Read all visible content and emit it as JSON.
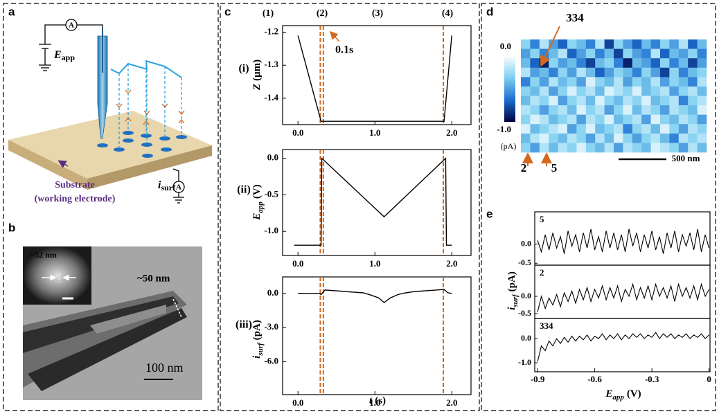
{
  "panels": {
    "a": {
      "label": "a",
      "ammeter_top": "A",
      "e_symbol": "E",
      "e_sub": "app",
      "i_symbol": "i",
      "i_sub": "surf",
      "ammeter_bottom": "A",
      "substrate": "Substrate",
      "electrode": "(working electrode)"
    },
    "b": {
      "label": "b",
      "inset_size": "~52 nm",
      "tube_size": "~50 nm",
      "scale_bar": "100 nm"
    },
    "c": {
      "label": "c"
    },
    "d": {
      "label": "d"
    },
    "e": {
      "label": "e"
    }
  },
  "chart_data": [
    {
      "type": "line",
      "row_label": "(i)",
      "phases": [
        "(1)",
        "(2)",
        "(3)",
        "(4)"
      ],
      "annotation": "0.1s",
      "ylabel": {
        "symbol": "Z",
        "unit": "(μm)"
      },
      "x": [
        0,
        0.3,
        1.9,
        2.0
      ],
      "values": [
        -1.21,
        -1.47,
        -1.47,
        -1.21
      ],
      "color": "#000000",
      "xlim": [
        -0.2,
        2.25
      ],
      "ylim": [
        -1.48,
        -1.18
      ],
      "xticks": [
        {
          "value": 0,
          "label": "0.0"
        },
        {
          "value": 1,
          "label": "1.0"
        },
        {
          "value": 2,
          "label": "2.0"
        }
      ],
      "yticks": [
        -1.2,
        -1.3,
        -1.4
      ],
      "markers": [
        0.29,
        0.33,
        1.89
      ],
      "marker_color": "#d2691e"
    },
    {
      "type": "line",
      "row_label": "(ii)",
      "ylabel": {
        "symbol": "E",
        "subscript": "app",
        "unit": "(V)"
      },
      "x": [
        -0.05,
        0.3,
        0.31,
        1.12,
        1.92,
        1.93,
        2.0
      ],
      "values": [
        -1.19,
        -1.19,
        0,
        -0.8,
        0,
        -1.19,
        -1.19
      ],
      "color": "#000000",
      "xlim": [
        -0.2,
        2.25
      ],
      "ylim": [
        -1.33,
        0.12
      ],
      "xticks": [
        {
          "value": 0,
          "label": "0.0"
        },
        {
          "value": 1,
          "label": "1.0"
        },
        {
          "value": 2,
          "label": "2.0"
        }
      ],
      "yticks": [
        {
          "value": 0,
          "label": "0.0"
        },
        -0.5,
        {
          "value": -1,
          "label": "-1.0"
        }
      ],
      "markers": [
        0.29,
        0.33,
        1.89
      ],
      "marker_color": "#d2691e"
    },
    {
      "type": "line",
      "row_label": "(iii)",
      "ylabel": {
        "symbol": "i",
        "subscript": "surf",
        "unit": "(pA)"
      },
      "xlabel": {
        "symbol": "t",
        "unit": "(s)"
      },
      "x": [
        0,
        0.1,
        0.2,
        0.28,
        0.3,
        0.35,
        0.45,
        0.55,
        0.65,
        0.75,
        0.85,
        0.95,
        1.05,
        1.12,
        1.2,
        1.3,
        1.4,
        1.5,
        1.6,
        1.7,
        1.8,
        1.9,
        1.95,
        2.0
      ],
      "values": [
        0,
        0,
        0,
        0,
        -0.1,
        0.3,
        0.25,
        0.2,
        0.15,
        0.1,
        0.05,
        -0.15,
        -0.4,
        -0.8,
        -0.4,
        -0.1,
        0.05,
        0.15,
        0.2,
        0.25,
        0.3,
        0.35,
        0.05,
        0
      ],
      "color": "#000000",
      "xlim": [
        -0.2,
        2.25
      ],
      "ylim": [
        -8.9,
        1.45
      ],
      "xticks": [
        {
          "value": 0,
          "label": "0.0"
        },
        {
          "value": 1,
          "label": "1.0"
        },
        {
          "value": 2,
          "label": "2.0"
        }
      ],
      "yticks": [
        {
          "value": 0,
          "label": "0.0"
        },
        {
          "value": -3,
          "label": "-3.0"
        },
        {
          "value": -6,
          "label": "-6.0"
        }
      ],
      "markers": [
        0.29,
        0.33,
        1.89
      ],
      "marker_color": "#d2691e"
    },
    {
      "type": "heatmap",
      "zlim": [
        -1,
        0
      ],
      "colormap": [
        "#000040",
        "#1e6ed2",
        "#7fd0f0",
        "#ffffff"
      ],
      "colorbar_ticks": [
        {
          "value": 0,
          "label": "0.0"
        },
        {
          "value": -1,
          "label": "-1.0"
        }
      ],
      "colorbar_unit": "(pA)",
      "annotations": [
        "334",
        "2",
        "5"
      ],
      "annotation_color": "#d2691e",
      "scale_bar": "500 nm",
      "values": [
        [
          -0.3,
          -0.6,
          -0.2,
          -0.5,
          -0.7,
          -0.3,
          -0.4,
          -0.6,
          -0.2,
          -0.8,
          -0.3,
          -0.5,
          -0.7,
          -0.4,
          -0.6,
          -0.3,
          -0.5,
          -0.2,
          -0.7,
          -0.4
        ],
        [
          -0.5,
          -0.3,
          -0.6,
          -0.4,
          -0.2,
          -0.7,
          -0.5,
          -0.3,
          -0.6,
          -0.4,
          -0.8,
          -0.3,
          -0.5,
          -0.6,
          -0.2,
          -0.7,
          -0.4,
          -0.5,
          -0.3,
          -0.6
        ],
        [
          -0.4,
          -0.7,
          -0.9,
          -0.3,
          -0.5,
          -0.4,
          -0.6,
          -0.8,
          -0.4,
          -0.3,
          -0.6,
          -0.9,
          -0.4,
          -0.5,
          -0.7,
          -0.3,
          -0.6,
          -0.4,
          -0.8,
          -0.5
        ],
        [
          -0.2,
          -0.5,
          -0.4,
          -0.6,
          -0.3,
          -0.5,
          -0.2,
          -0.4,
          -0.7,
          -0.5,
          -0.3,
          -0.4,
          -0.6,
          -0.3,
          -0.5,
          -0.8,
          -0.3,
          -0.6,
          -0.4,
          -0.3
        ],
        [
          -0.6,
          -0.3,
          -0.5,
          -0.2,
          -0.4,
          -0.3,
          -0.5,
          -0.1,
          -0.3,
          -0.4,
          -0.2,
          -0.5,
          -0.3,
          -0.4,
          -0.2,
          -0.5,
          -0.3,
          -0.4,
          -0.6,
          -0.2
        ],
        [
          -0.3,
          -0.4,
          -0.2,
          -0.5,
          -0.3,
          -0.1,
          -0.3,
          -0.2,
          -0.4,
          -0.1,
          -0.2,
          -0.3,
          -0.1,
          -0.4,
          -0.3,
          -0.2,
          -0.5,
          -0.3,
          -0.2,
          -0.4
        ],
        [
          -0.4,
          -0.2,
          -0.3,
          -0.1,
          -0.5,
          -0.3,
          -0.2,
          -0.4,
          -0.1,
          -0.3,
          -0.4,
          -0.2,
          -0.3,
          -0.1,
          -0.4,
          -0.3,
          -0.2,
          -0.6,
          -0.3,
          -0.2
        ],
        [
          -0.2,
          -0.3,
          -0.5,
          -0.3,
          -0.2,
          -0.4,
          -0.1,
          -0.3,
          -0.2,
          -0.5,
          -0.3,
          -0.1,
          -0.4,
          -0.2,
          -0.3,
          -0.5,
          -0.2,
          -0.3,
          -0.4,
          -0.1
        ],
        [
          -0.3,
          -0.1,
          -0.2,
          -0.4,
          -0.3,
          -0.2,
          -0.5,
          -0.2,
          -0.3,
          -0.1,
          -0.4,
          -0.3,
          -0.2,
          -0.5,
          -0.1,
          -0.3,
          -0.4,
          -0.2,
          -0.3,
          -0.5
        ],
        [
          -0.1,
          -0.4,
          -0.3,
          -0.2,
          -0.1,
          -0.5,
          -0.3,
          -0.1,
          -0.4,
          -0.3,
          -0.2,
          -0.6,
          -0.3,
          -0.2,
          -0.4,
          -0.1,
          -0.3,
          -0.5,
          -0.2,
          -0.3
        ],
        [
          -0.4,
          -0.2,
          -0.1,
          -0.3,
          -0.4,
          -0.2,
          -0.3,
          -0.5,
          -0.2,
          -0.4,
          -0.1,
          -0.3,
          -0.5,
          -0.3,
          -0.2,
          -0.4,
          -0.6,
          -0.2,
          -0.3,
          -0.2
        ],
        [
          -0.3,
          -0.5,
          -0.2,
          -0.4,
          -0.2,
          -0.3,
          -0.1,
          -0.3,
          -0.4,
          -0.2,
          -0.5,
          -0.2,
          -0.3,
          -0.4,
          -0.1,
          -0.2,
          -0.3,
          -0.5,
          -0.2,
          -0.4
        ]
      ]
    },
    {
      "type": "stacked_line",
      "xlabel": {
        "symbol": "E",
        "subscript": "app",
        "unit": "(V)"
      },
      "ylabel": {
        "symbol": "i",
        "subscript": "surf",
        "unit": "(pA)"
      },
      "xlim": [
        -0.915,
        0.005
      ],
      "xticks": [
        -0.9,
        -0.6,
        -0.3,
        0
      ],
      "x": [
        -0.9,
        -0.88,
        -0.86,
        -0.84,
        -0.82,
        -0.8,
        -0.78,
        -0.76,
        -0.74,
        -0.72,
        -0.7,
        -0.68,
        -0.66,
        -0.64,
        -0.62,
        -0.6,
        -0.58,
        -0.56,
        -0.54,
        -0.52,
        -0.5,
        -0.48,
        -0.46,
        -0.44,
        -0.42,
        -0.4,
        -0.38,
        -0.36,
        -0.34,
        -0.32,
        -0.3,
        -0.28,
        -0.26,
        -0.24,
        -0.22,
        -0.2,
        -0.18,
        -0.16,
        -0.14,
        -0.12,
        -0.1,
        -0.08,
        -0.06,
        -0.04,
        -0.02,
        0
      ],
      "series": [
        {
          "name": "5",
          "color": "#000000",
          "ylim": [
            -0.55,
            0.85
          ],
          "yticks": [
            {
              "value": 0,
              "label": "0.0"
            },
            -0.5
          ],
          "values": [
            0.1,
            -0.2,
            0.25,
            -0.15,
            0.3,
            -0.1,
            0.2,
            -0.25,
            0.35,
            -0.05,
            0.25,
            -0.2,
            0.3,
            -0.1,
            0.4,
            -0.15,
            0.2,
            -0.2,
            0.35,
            -0.1,
            0.3,
            -0.15,
            0.25,
            -0.2,
            0.4,
            -0.05,
            0.3,
            -0.2,
            0.25,
            -0.1,
            0.35,
            -0.15,
            0.2,
            -0.25,
            0.3,
            -0.1,
            0.35,
            -0.2,
            0.25,
            -0.05,
            0.3,
            -0.15,
            0.4,
            -0.2,
            0.25,
            -0.1
          ]
        },
        {
          "name": "2",
          "color": "#000000",
          "ylim": [
            -0.64,
            0.9
          ],
          "yticks": [
            {
              "value": 0,
              "label": "0.0"
            },
            -0.5
          ],
          "values": [
            -0.45,
            0.0,
            -0.35,
            -0.05,
            -0.25,
            0.05,
            -0.3,
            0.1,
            -0.15,
            0.15,
            -0.2,
            0.2,
            -0.1,
            0.25,
            -0.15,
            0.2,
            -0.05,
            0.3,
            -0.1,
            0.25,
            -0.05,
            0.3,
            -0.15,
            0.2,
            0.0,
            0.35,
            -0.1,
            0.25,
            -0.05,
            0.3,
            -0.1,
            0.35,
            0.0,
            0.25,
            -0.05,
            0.3,
            -0.15,
            0.35,
            0.0,
            0.25,
            -0.05,
            0.3,
            -0.1,
            0.35,
            0.0,
            0.2
          ]
        },
        {
          "name": "334",
          "color": "#000000",
          "ylim": [
            -1.37,
            0.83
          ],
          "yticks": [
            {
              "value": 0,
              "label": "0.0"
            },
            {
              "value": -1,
              "label": "-1.0"
            }
          ],
          "values": [
            -0.95,
            -0.3,
            -0.5,
            -0.1,
            -0.3,
            0.0,
            -0.2,
            0.05,
            -0.15,
            0.1,
            -0.1,
            0.1,
            -0.05,
            0.15,
            -0.1,
            0.1,
            0.0,
            0.2,
            -0.05,
            0.15,
            0.0,
            0.2,
            -0.05,
            0.15,
            0.0,
            0.2,
            0.05,
            0.2,
            0.0,
            0.15,
            0.05,
            0.25,
            0.0,
            0.2,
            0.05,
            0.2,
            0.0,
            0.15,
            0.05,
            0.2,
            0.0,
            0.15,
            0.05,
            0.2,
            0.0,
            0.15
          ]
        }
      ]
    }
  ]
}
